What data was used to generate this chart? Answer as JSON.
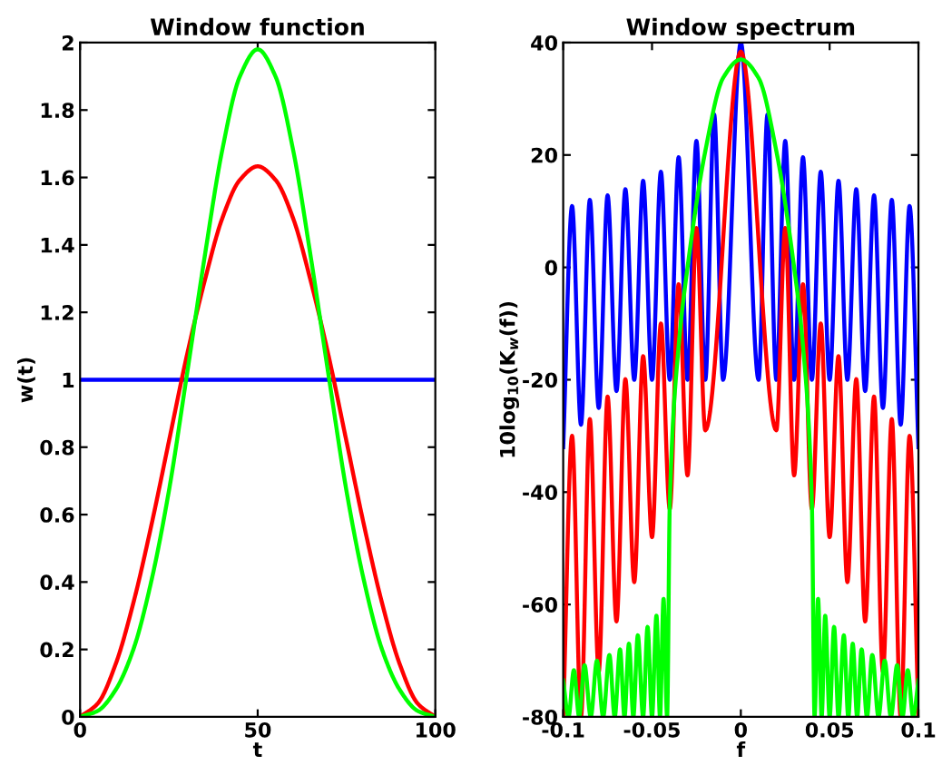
{
  "chart_data": [
    {
      "type": "line",
      "title": "Window function",
      "xlabel": "t",
      "ylabel": "w(t)",
      "xlim": [
        0,
        100
      ],
      "ylim": [
        0,
        2
      ],
      "xticks": [
        0,
        50,
        100
      ],
      "yticks": [
        0,
        0.2,
        0.4,
        0.6,
        0.8,
        1,
        1.2,
        1.4,
        1.6,
        1.8,
        2
      ],
      "x": [
        0,
        5,
        10,
        15,
        20,
        25,
        30,
        35,
        40,
        45,
        50,
        55,
        60,
        65,
        70,
        75,
        80,
        85,
        90,
        95,
        100
      ],
      "series": [
        {
          "color": "#0000ff",
          "values": [
            1,
            1,
            1,
            1,
            1,
            1,
            1,
            1,
            1,
            1,
            1,
            1,
            1,
            1,
            1,
            1,
            1,
            1,
            1,
            1,
            1
          ]
        },
        {
          "color": "#ff0000",
          "values": [
            0,
            0.04,
            0.156,
            0.338,
            0.565,
            0.817,
            1.069,
            1.29,
            1.478,
            1.593,
            1.633,
            1.593,
            1.478,
            1.29,
            1.069,
            0.817,
            0.565,
            0.338,
            0.156,
            0.04,
            0
          ]
        },
        {
          "color": "#00ff00",
          "values": [
            0,
            0.018,
            0.08,
            0.2,
            0.4,
            0.67,
            1.01,
            1.36,
            1.68,
            1.9,
            1.98,
            1.9,
            1.68,
            1.36,
            1.01,
            0.67,
            0.4,
            0.2,
            0.08,
            0.018,
            0
          ]
        }
      ]
    },
    {
      "type": "line",
      "title": "Window spectrum",
      "xlabel": "f",
      "ylabel": "10log$_{10}$(K$_{w}$(f))",
      "xlim": [
        -0.1,
        0.1
      ],
      "ylim": [
        -80,
        40
      ],
      "xticks": [
        -0.1,
        -0.05,
        0,
        0.05,
        0.1
      ],
      "yticks": [
        -80,
        -60,
        -40,
        -20,
        0,
        20,
        40
      ],
      "series": [
        {
          "color": "#0000ff",
          "x": [
            -0.1,
            -0.095,
            -0.09,
            -0.085,
            -0.08,
            -0.075,
            -0.07,
            -0.065,
            -0.06,
            -0.055,
            -0.05,
            -0.045,
            -0.04,
            -0.035,
            -0.03,
            -0.025,
            -0.02,
            -0.015,
            -0.01,
            0,
            0.01,
            0.015,
            0.02,
            0.025,
            0.03,
            0.035,
            0.04,
            0.045,
            0.05,
            0.055,
            0.06,
            0.065,
            0.07,
            0.075,
            0.08,
            0.085,
            0.09,
            0.095,
            0.1
          ],
          "values": [
            -32,
            10.9,
            -28,
            12,
            -25,
            12.8,
            -22,
            13.9,
            -20,
            15.4,
            -20,
            17,
            -20,
            19.6,
            -20,
            22.5,
            -20,
            27.2,
            -20,
            40,
            -20,
            27.2,
            -20,
            22.5,
            -20,
            19.6,
            -20,
            17,
            -20,
            15.4,
            -20,
            13.9,
            -22,
            12.8,
            -25,
            12,
            -28,
            10.9,
            -32
          ]
        },
        {
          "color": "#ff0000",
          "x": [
            -0.1,
            -0.095,
            -0.09,
            -0.085,
            -0.08,
            -0.075,
            -0.07,
            -0.065,
            -0.06,
            -0.055,
            -0.05,
            -0.045,
            -0.04,
            -0.035,
            -0.03,
            -0.025,
            -0.02,
            0,
            0.02,
            0.025,
            0.03,
            0.035,
            0.04,
            0.045,
            0.05,
            0.055,
            0.06,
            0.065,
            0.07,
            0.075,
            0.08,
            0.085,
            0.09,
            0.095,
            0.1
          ],
          "values": [
            -80,
            -30,
            -80,
            -27,
            -72,
            -23,
            -63,
            -19.9,
            -56,
            -15.8,
            -48,
            -10,
            -43,
            -3,
            -37,
            7,
            -29,
            38.4,
            -29,
            7,
            -37,
            -3,
            -43,
            -10,
            -48,
            -15.8,
            -56,
            -19.9,
            -63,
            -23,
            -72,
            -27,
            -80,
            -30,
            -80
          ]
        },
        {
          "color": "#00ff00",
          "x": [
            -0.1,
            -0.097,
            -0.094,
            -0.091,
            -0.088,
            -0.0845,
            -0.081,
            -0.0775,
            -0.074,
            -0.071,
            -0.068,
            -0.0655,
            -0.063,
            -0.0605,
            -0.058,
            -0.055,
            -0.0525,
            -0.05,
            -0.0475,
            -0.0455,
            -0.0435,
            -0.0415,
            -0.04,
            -0.035,
            -0.03,
            -0.02,
            -0.01,
            0,
            0.01,
            0.02,
            0.03,
            0.035,
            0.04,
            0.0415,
            0.0435,
            0.0455,
            0.0475,
            0.05,
            0.0525,
            0.055,
            0.058,
            0.0605,
            0.063,
            0.0655,
            0.068,
            0.071,
            0.074,
            0.0775,
            0.081,
            0.0845,
            0.088,
            0.091,
            0.094,
            0.097,
            0.1
          ],
          "values": [
            -73.5,
            -80,
            -71.7,
            -80,
            -70.8,
            -80,
            -70,
            -80,
            -69,
            -80,
            -68,
            -80,
            -67,
            -80,
            -65.5,
            -80,
            -64,
            -80,
            -62,
            -80,
            -59,
            -80,
            -42,
            -14,
            0,
            20.7,
            33.7,
            37,
            33.7,
            20.7,
            0,
            -14,
            -42,
            -80,
            -59,
            -80,
            -62,
            -80,
            -64,
            -80,
            -65.5,
            -80,
            -67,
            -80,
            -68,
            -80,
            -69,
            -80,
            -70,
            -80,
            -70.8,
            -80,
            -71.7,
            -80,
            -73.5
          ]
        }
      ]
    }
  ]
}
